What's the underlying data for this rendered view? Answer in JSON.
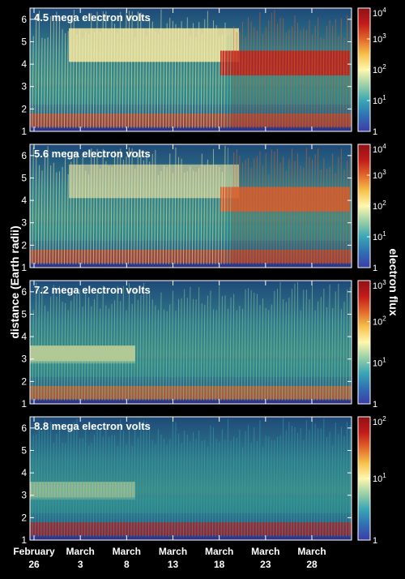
{
  "colors": {
    "background": "#000000",
    "text": "#ffffff",
    "colormap": [
      "#3c3ca8",
      "#2f6fb3",
      "#3aa6b5",
      "#9ad0a6",
      "#fff7ae",
      "#f6c24a",
      "#e2662a",
      "#c11a1a",
      "#8e1216"
    ]
  },
  "figure": {
    "ylabel": "distance (Earth radii)",
    "colorbar_label": "electron flux",
    "x_ticks": [
      {
        "line1": "February",
        "line2": "26"
      },
      {
        "line1": "March",
        "line2": "3"
      },
      {
        "line1": "March",
        "line2": "8"
      },
      {
        "line1": "March",
        "line2": "13"
      },
      {
        "line1": "March",
        "line2": "18"
      },
      {
        "line1": "March",
        "line2": "23"
      },
      {
        "line1": "March",
        "line2": "28"
      }
    ]
  },
  "chart_data": [
    {
      "type": "heatmap",
      "title": "4.5 mega electron volts",
      "ylabel": "distance (Earth radii)",
      "colorbar_label": "electron flux",
      "ylim": [
        1,
        6.5
      ],
      "y_ticks": [
        "1",
        "2",
        "3",
        "4",
        "5",
        "6"
      ],
      "colorbar_scale": "log",
      "colorbar_range": [
        1,
        10000
      ],
      "colorbar_ticks": [
        {
          "base": "1",
          "exp": ""
        },
        {
          "base": "10",
          "exp": "1"
        },
        {
          "base": "10",
          "exp": "2"
        },
        {
          "base": "10",
          "exp": "3"
        },
        {
          "base": "10",
          "exp": "4"
        }
      ],
      "x_ticks": [
        "February 26",
        "March 3",
        "March 8",
        "March 13",
        "March 18",
        "March 23",
        "March 28"
      ]
    },
    {
      "type": "heatmap",
      "title": "5.6 mega electron volts",
      "ylabel": "distance (Earth radii)",
      "colorbar_label": "electron flux",
      "ylim": [
        1,
        6.5
      ],
      "y_ticks": [
        "1",
        "2",
        "3",
        "4",
        "5",
        "6"
      ],
      "colorbar_scale": "log",
      "colorbar_range": [
        1,
        10000
      ],
      "colorbar_ticks": [
        {
          "base": "1",
          "exp": ""
        },
        {
          "base": "10",
          "exp": "1"
        },
        {
          "base": "10",
          "exp": "2"
        },
        {
          "base": "10",
          "exp": "3"
        },
        {
          "base": "10",
          "exp": "4"
        }
      ],
      "x_ticks": [
        "February 26",
        "March 3",
        "March 8",
        "March 13",
        "March 18",
        "March 23",
        "March 28"
      ]
    },
    {
      "type": "heatmap",
      "title": "7.2 mega electron volts",
      "ylabel": "distance (Earth radii)",
      "colorbar_label": "electron flux",
      "ylim": [
        1,
        6.5
      ],
      "y_ticks": [
        "1",
        "2",
        "3",
        "4",
        "5",
        "6"
      ],
      "colorbar_scale": "log",
      "colorbar_range": [
        1,
        1000
      ],
      "colorbar_ticks": [
        {
          "base": "1",
          "exp": ""
        },
        {
          "base": "10",
          "exp": "1"
        },
        {
          "base": "10",
          "exp": "2"
        },
        {
          "base": "10",
          "exp": "3"
        }
      ],
      "x_ticks": [
        "February 26",
        "March 3",
        "March 8",
        "March 13",
        "March 18",
        "March 23",
        "March 28"
      ]
    },
    {
      "type": "heatmap",
      "title": "8.8 mega electron volts",
      "ylabel": "distance (Earth radii)",
      "colorbar_label": "electron flux",
      "ylim": [
        1,
        6.5
      ],
      "y_ticks": [
        "1",
        "2",
        "3",
        "4",
        "5",
        "6"
      ],
      "colorbar_scale": "log",
      "colorbar_range": [
        1,
        100
      ],
      "colorbar_ticks": [
        {
          "base": "1",
          "exp": ""
        },
        {
          "base": "10",
          "exp": "1"
        },
        {
          "base": "10",
          "exp": "2"
        }
      ],
      "x_ticks": [
        "February 26",
        "March 3",
        "March 8",
        "March 13",
        "March 18",
        "March 23",
        "March 28"
      ]
    }
  ]
}
